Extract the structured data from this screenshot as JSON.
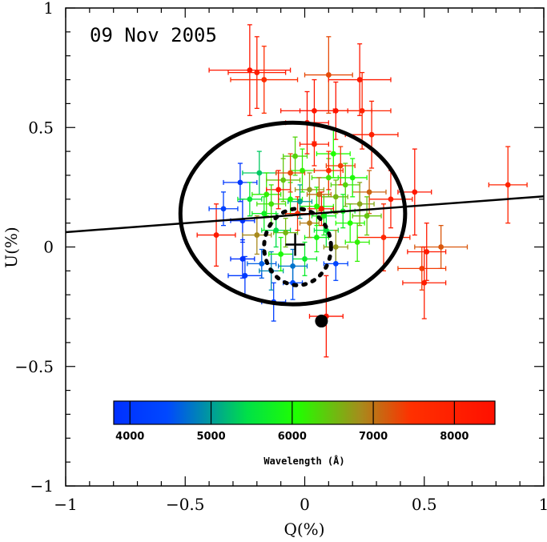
{
  "chart_data": {
    "type": "scatter",
    "title": "09 Nov 2005",
    "xlabel": "Q(%)",
    "ylabel": "U(%)",
    "xlim": [
      -1,
      1
    ],
    "ylim": [
      -1,
      1
    ],
    "x_ticks": [
      -1,
      -0.5,
      0,
      0.5,
      1
    ],
    "x_tick_labels": [
      "−1",
      "−0.5",
      "0",
      "0.5",
      "1"
    ],
    "y_ticks": [
      -1,
      -0.5,
      0,
      0.5,
      1
    ],
    "y_tick_labels": [
      "−1",
      "−0.5",
      "0",
      "0.5",
      "1"
    ],
    "colorbar": {
      "title": "Wavelength (Å)",
      "range": [
        3800,
        8500
      ],
      "ticks": [
        4000,
        5000,
        6000,
        7000,
        8000
      ],
      "tick_labels": [
        "4000",
        "5000",
        "6000",
        "7000",
        "8000"
      ]
    },
    "fit_line": {
      "slope": 0.075,
      "intercept": 0.137
    },
    "ellipse_large": {
      "cx": -0.05,
      "cy": 0.14,
      "rx": 0.47,
      "ry": 0.38
    },
    "ellipse_dashed": {
      "cx": -0.03,
      "cy": 0.0,
      "rx": 0.14,
      "ry": 0.16
    },
    "isp_marker": {
      "q": 0.07,
      "u": -0.31
    },
    "cross_marker": {
      "q": -0.04,
      "u": 0.01
    },
    "points": [
      {
        "q": -0.23,
        "u": 0.74,
        "dq": 0.17,
        "du": 0.19,
        "wl": 8300
      },
      {
        "q": -0.2,
        "u": 0.73,
        "dq": 0.12,
        "du": 0.15,
        "wl": 8100
      },
      {
        "q": -0.17,
        "u": 0.7,
        "dq": 0.14,
        "du": 0.14,
        "wl": 7600
      },
      {
        "q": 0.1,
        "u": 0.72,
        "dq": 0.1,
        "du": 0.16,
        "wl": 7300
      },
      {
        "q": 0.23,
        "u": 0.7,
        "dq": 0.13,
        "du": 0.15,
        "wl": 8200
      },
      {
        "q": 0.04,
        "u": 0.57,
        "dq": 0.14,
        "du": 0.13,
        "wl": 8300
      },
      {
        "q": 0.13,
        "u": 0.57,
        "dq": 0.15,
        "du": 0.12,
        "wl": 8400
      },
      {
        "q": 0.24,
        "u": 0.57,
        "dq": 0.12,
        "du": 0.16,
        "wl": 7900
      },
      {
        "q": 0.01,
        "u": 0.52,
        "dq": 0.09,
        "du": 0.13,
        "wl": 8450
      },
      {
        "q": 0.28,
        "u": 0.47,
        "dq": 0.11,
        "du": 0.14,
        "wl": 8000
      },
      {
        "q": 0.85,
        "u": 0.26,
        "dq": 0.08,
        "du": 0.16,
        "wl": 7900
      },
      {
        "q": 0.46,
        "u": 0.23,
        "dq": 0.07,
        "du": 0.18,
        "wl": 8300
      },
      {
        "q": 0.57,
        "u": 0.0,
        "dq": 0.11,
        "du": 0.09,
        "wl": 7200
      },
      {
        "q": 0.49,
        "u": -0.09,
        "dq": 0.1,
        "du": 0.09,
        "wl": 7400
      },
      {
        "q": 0.5,
        "u": -0.15,
        "dq": 0.09,
        "du": 0.15,
        "wl": 8100
      },
      {
        "q": 0.51,
        "u": -0.02,
        "dq": 0.08,
        "du": 0.12,
        "wl": 8200
      },
      {
        "q": -0.37,
        "u": 0.05,
        "dq": 0.08,
        "du": 0.13,
        "wl": 8200
      },
      {
        "q": 0.09,
        "u": -0.29,
        "dq": 0.07,
        "du": 0.17,
        "wl": 8300
      },
      {
        "q": 0.33,
        "u": 0.04,
        "dq": 0.11,
        "du": 0.14,
        "wl": 7800
      },
      {
        "q": 0.36,
        "u": 0.2,
        "dq": 0.09,
        "du": 0.12,
        "wl": 8100
      },
      {
        "q": -0.27,
        "u": 0.27,
        "dq": 0.07,
        "du": 0.08,
        "wl": 4000
      },
      {
        "q": -0.34,
        "u": 0.16,
        "dq": 0.06,
        "du": 0.07,
        "wl": 4300
      },
      {
        "q": -0.26,
        "u": 0.11,
        "dq": 0.05,
        "du": 0.09,
        "wl": 3900
      },
      {
        "q": -0.26,
        "u": -0.05,
        "dq": 0.05,
        "du": 0.08,
        "wl": 3800
      },
      {
        "q": -0.25,
        "u": -0.12,
        "dq": 0.07,
        "du": 0.08,
        "wl": 4100
      },
      {
        "q": -0.18,
        "u": -0.07,
        "dq": 0.06,
        "du": 0.06,
        "wl": 4600
      },
      {
        "q": -0.13,
        "u": -0.23,
        "dq": 0.05,
        "du": 0.08,
        "wl": 4200
      },
      {
        "q": -0.14,
        "u": -0.1,
        "dq": 0.05,
        "du": 0.08,
        "wl": 4800
      },
      {
        "q": -0.05,
        "u": -0.15,
        "dq": 0.04,
        "du": 0.07,
        "wl": 4500
      },
      {
        "q": 0.13,
        "u": -0.07,
        "dq": 0.05,
        "du": 0.07,
        "wl": 4400
      },
      {
        "q": -0.12,
        "u": 0.07,
        "dq": 0.06,
        "du": 0.07,
        "wl": 5200
      },
      {
        "q": -0.17,
        "u": 0.14,
        "dq": 0.05,
        "du": 0.07,
        "wl": 5600
      },
      {
        "q": -0.19,
        "u": 0.31,
        "dq": 0.07,
        "du": 0.09,
        "wl": 5100
      },
      {
        "q": -0.16,
        "u": 0.22,
        "dq": 0.06,
        "du": 0.09,
        "wl": 6100
      },
      {
        "q": -0.09,
        "u": 0.28,
        "dq": 0.07,
        "du": 0.09,
        "wl": 6400
      },
      {
        "q": -0.06,
        "u": 0.2,
        "dq": 0.05,
        "du": 0.07,
        "wl": 5900
      },
      {
        "q": -0.04,
        "u": 0.38,
        "dq": 0.05,
        "du": 0.08,
        "wl": 6300
      },
      {
        "q": -0.01,
        "u": 0.32,
        "dq": 0.05,
        "du": 0.09,
        "wl": 6100
      },
      {
        "q": 0.02,
        "u": 0.24,
        "dq": 0.06,
        "du": 0.07,
        "wl": 6700
      },
      {
        "q": 0.05,
        "u": 0.17,
        "dq": 0.07,
        "du": 0.08,
        "wl": 6000
      },
      {
        "q": 0.08,
        "u": 0.13,
        "dq": 0.05,
        "du": 0.08,
        "wl": 5700
      },
      {
        "q": 0.1,
        "u": 0.29,
        "dq": 0.07,
        "du": 0.08,
        "wl": 6200
      },
      {
        "q": 0.12,
        "u": 0.39,
        "dq": 0.07,
        "du": 0.1,
        "wl": 6000
      },
      {
        "q": 0.13,
        "u": 0.21,
        "dq": 0.05,
        "du": 0.07,
        "wl": 6500
      },
      {
        "q": 0.17,
        "u": 0.26,
        "dq": 0.06,
        "du": 0.09,
        "wl": 6300
      },
      {
        "q": 0.19,
        "u": 0.1,
        "dq": 0.06,
        "du": 0.08,
        "wl": 6000
      },
      {
        "q": 0.23,
        "u": 0.18,
        "dq": 0.06,
        "du": 0.09,
        "wl": 6600
      },
      {
        "q": 0.27,
        "u": 0.23,
        "dq": 0.07,
        "du": 0.09,
        "wl": 7100
      },
      {
        "q": 0.22,
        "u": 0.02,
        "dq": 0.05,
        "du": 0.08,
        "wl": 6100
      },
      {
        "q": 0.05,
        "u": 0.04,
        "dq": 0.05,
        "du": 0.06,
        "wl": 5800
      },
      {
        "q": -0.08,
        "u": 0.06,
        "dq": 0.05,
        "du": 0.06,
        "wl": 6500
      },
      {
        "q": -0.1,
        "u": -0.03,
        "dq": 0.05,
        "du": 0.07,
        "wl": 5900
      },
      {
        "q": 0.0,
        "u": -0.05,
        "dq": 0.05,
        "du": 0.07,
        "wl": 5500
      },
      {
        "q": 0.02,
        "u": 0.1,
        "dq": 0.04,
        "du": 0.06,
        "wl": 6900
      },
      {
        "q": -0.03,
        "u": 0.14,
        "dq": 0.05,
        "du": 0.07,
        "wl": 7600
      },
      {
        "q": 0.06,
        "u": 0.22,
        "dq": 0.05,
        "du": 0.07,
        "wl": 7000
      },
      {
        "q": -0.11,
        "u": 0.24,
        "dq": 0.05,
        "du": 0.08,
        "wl": 8300
      },
      {
        "q": -0.2,
        "u": 0.05,
        "dq": 0.06,
        "du": 0.08,
        "wl": 6800
      },
      {
        "q": 0.15,
        "u": 0.34,
        "dq": 0.06,
        "du": 0.08,
        "wl": 7400
      },
      {
        "q": 0.04,
        "u": 0.43,
        "dq": 0.06,
        "du": 0.09,
        "wl": 8000
      },
      {
        "q": 0.09,
        "u": 0.07,
        "dq": 0.05,
        "du": 0.07,
        "wl": 5300
      },
      {
        "q": -0.05,
        "u": -0.08,
        "dq": 0.06,
        "du": 0.07,
        "wl": 4700
      },
      {
        "q": 0.16,
        "u": 0.15,
        "dq": 0.05,
        "du": 0.07,
        "wl": 5600
      },
      {
        "q": -0.14,
        "u": 0.18,
        "dq": 0.06,
        "du": 0.08,
        "wl": 6200
      },
      {
        "q": 0.1,
        "u": 0.32,
        "dq": 0.06,
        "du": 0.08,
        "wl": 7700
      },
      {
        "q": -0.06,
        "u": 0.31,
        "dq": 0.06,
        "du": 0.08,
        "wl": 7300
      },
      {
        "q": 0.2,
        "u": 0.29,
        "dq": 0.06,
        "du": 0.08,
        "wl": 5900
      },
      {
        "q": 0.26,
        "u": 0.13,
        "dq": 0.06,
        "du": 0.08,
        "wl": 6400
      },
      {
        "q": -0.23,
        "u": 0.2,
        "dq": 0.05,
        "du": 0.07,
        "wl": 5400
      },
      {
        "q": 0.07,
        "u": 0.16,
        "dq": 0.05,
        "du": 0.07,
        "wl": 8200
      },
      {
        "q": -0.02,
        "u": 0.19,
        "dq": 0.05,
        "du": 0.07,
        "wl": 4900
      },
      {
        "q": 0.13,
        "u": 0.0,
        "dq": 0.05,
        "du": 0.07,
        "wl": 6700
      }
    ]
  }
}
